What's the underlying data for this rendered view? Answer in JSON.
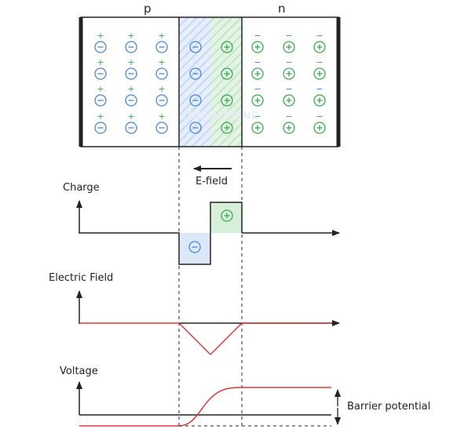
{
  "region_labels": {
    "p": "p",
    "n": "n"
  },
  "efield_label": "E-field",
  "graphs": {
    "charge": {
      "label": "Charge"
    },
    "field": {
      "label": "Electric Field"
    },
    "voltage": {
      "label": "Voltage",
      "barrier_label": "Barrier potential"
    }
  },
  "charges": {
    "minus_symbol": "−",
    "plus_symbol": "+",
    "rows": 4,
    "p_neutral_columns": 3,
    "depletion_columns_each_side": 1,
    "n_neutral_columns": 3
  },
  "watermark_text": "ENGINEERING",
  "colors": {
    "p_blue": "#4a86d8",
    "p_fill": "#dce8f8",
    "n_green": "#3aa852",
    "n_fill": "#d6efd9",
    "efield_red": "#d93a3a",
    "line": "#222222"
  }
}
